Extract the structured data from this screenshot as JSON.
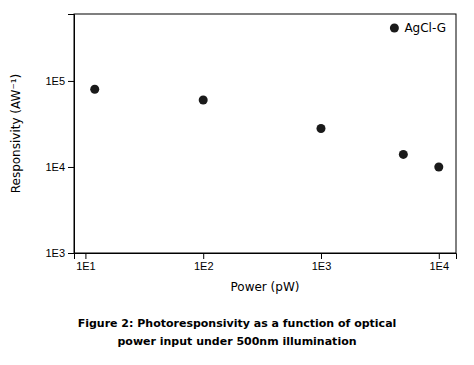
{
  "chart_data": {
    "type": "scatter",
    "title": "Figure 2: Photoresponsivity as a function of optical",
    "subtitle": "power input under 500nm illumination",
    "x_label": "Power (pW)",
    "y_label": "Responsivity (AW⁻¹)",
    "x": [
      12,
      100,
      1000,
      5000,
      10000
    ],
    "series": [
      {
        "name": "AgCl-G",
        "color": "#1a1a1a",
        "values": [
          80000,
          60000,
          28000,
          14000,
          10000
        ]
      }
    ],
    "log": true,
    "xlim": [
      8,
      14000
    ],
    "ylim": [
      1000,
      600000
    ],
    "xticks": [
      {
        "value": 10,
        "label": "1E1"
      },
      {
        "value": 100,
        "label": "1E2"
      },
      {
        "value": 1000,
        "label": "1E3"
      },
      {
        "value": 10000,
        "label": "1E4"
      }
    ],
    "yticks": [
      {
        "value": 1000,
        "label": "1E3"
      },
      {
        "value": 10000,
        "label": "1E4"
      },
      {
        "value": 100000,
        "label": "1E5"
      }
    ],
    "grid": false,
    "legend": "upper right"
  }
}
